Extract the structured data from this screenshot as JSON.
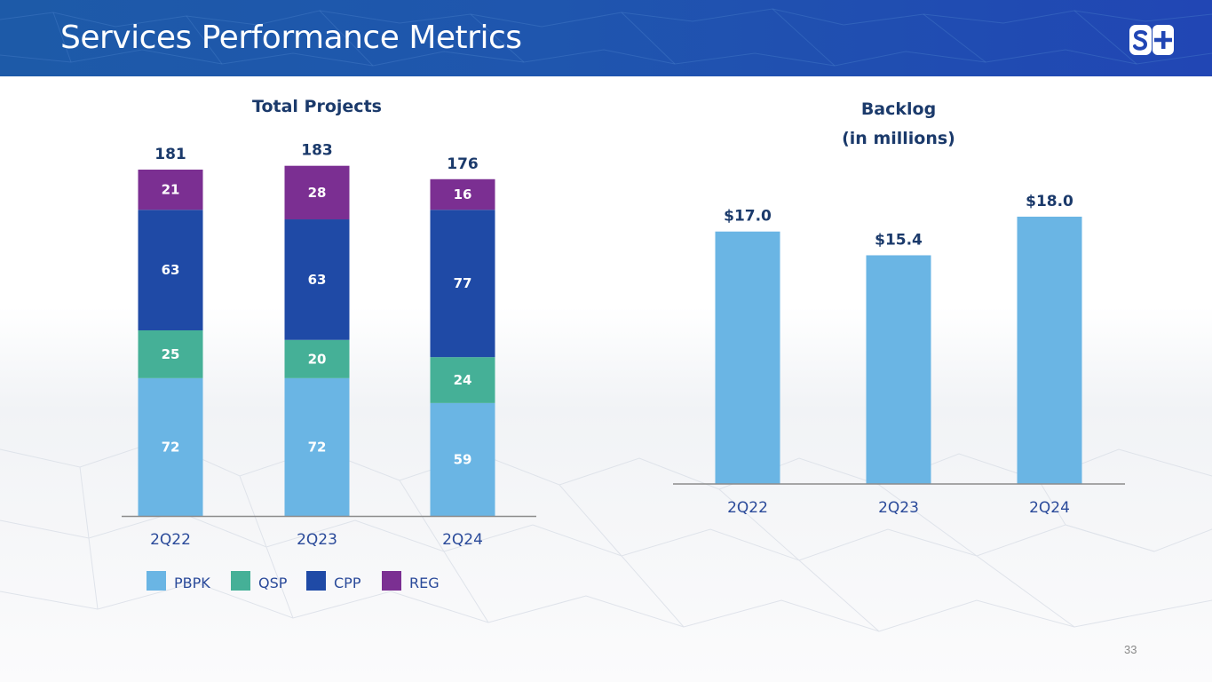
{
  "header": {
    "title": "Services Performance Metrics",
    "logo_text": "S+",
    "background_color": "#1f56ae"
  },
  "page_number": "33",
  "colors": {
    "PBPK": "#6ab5e4",
    "QSP": "#45b097",
    "CPP": "#1f4aa6",
    "REG": "#7b2f92",
    "backlog_bar": "#6ab5e4",
    "title_text": "#1b3a6b",
    "axis_text": "#2a4a9a"
  },
  "chart_data": [
    {
      "type": "bar",
      "stacked": true,
      "title": "Total Projects",
      "categories": [
        "2Q22",
        "2Q23",
        "2Q24"
      ],
      "series": [
        {
          "name": "PBPK",
          "values": [
            72,
            72,
            59
          ]
        },
        {
          "name": "QSP",
          "values": [
            25,
            20,
            24
          ]
        },
        {
          "name": "CPP",
          "values": [
            63,
            63,
            77
          ]
        },
        {
          "name": "REG",
          "values": [
            21,
            28,
            16
          ]
        }
      ],
      "totals": [
        181,
        183,
        176
      ],
      "total_labels": [
        "181",
        "183",
        "176"
      ],
      "xlabel": "",
      "ylabel": "",
      "ylim": [
        0,
        183
      ],
      "grid": false,
      "legend": {
        "position": "bottom",
        "entries": [
          "PBPK",
          "QSP",
          "CPP",
          "REG"
        ]
      }
    },
    {
      "type": "bar",
      "title": "Backlog",
      "subtitle": "(in millions)",
      "categories": [
        "2Q22",
        "2Q23",
        "2Q24"
      ],
      "values": [
        17.0,
        15.4,
        18.0
      ],
      "value_labels": [
        "$17.0",
        "$15.4",
        "$18.0"
      ],
      "xlabel": "",
      "ylabel": "",
      "ylim": [
        0,
        18.0
      ],
      "grid": false,
      "legend": null
    }
  ]
}
